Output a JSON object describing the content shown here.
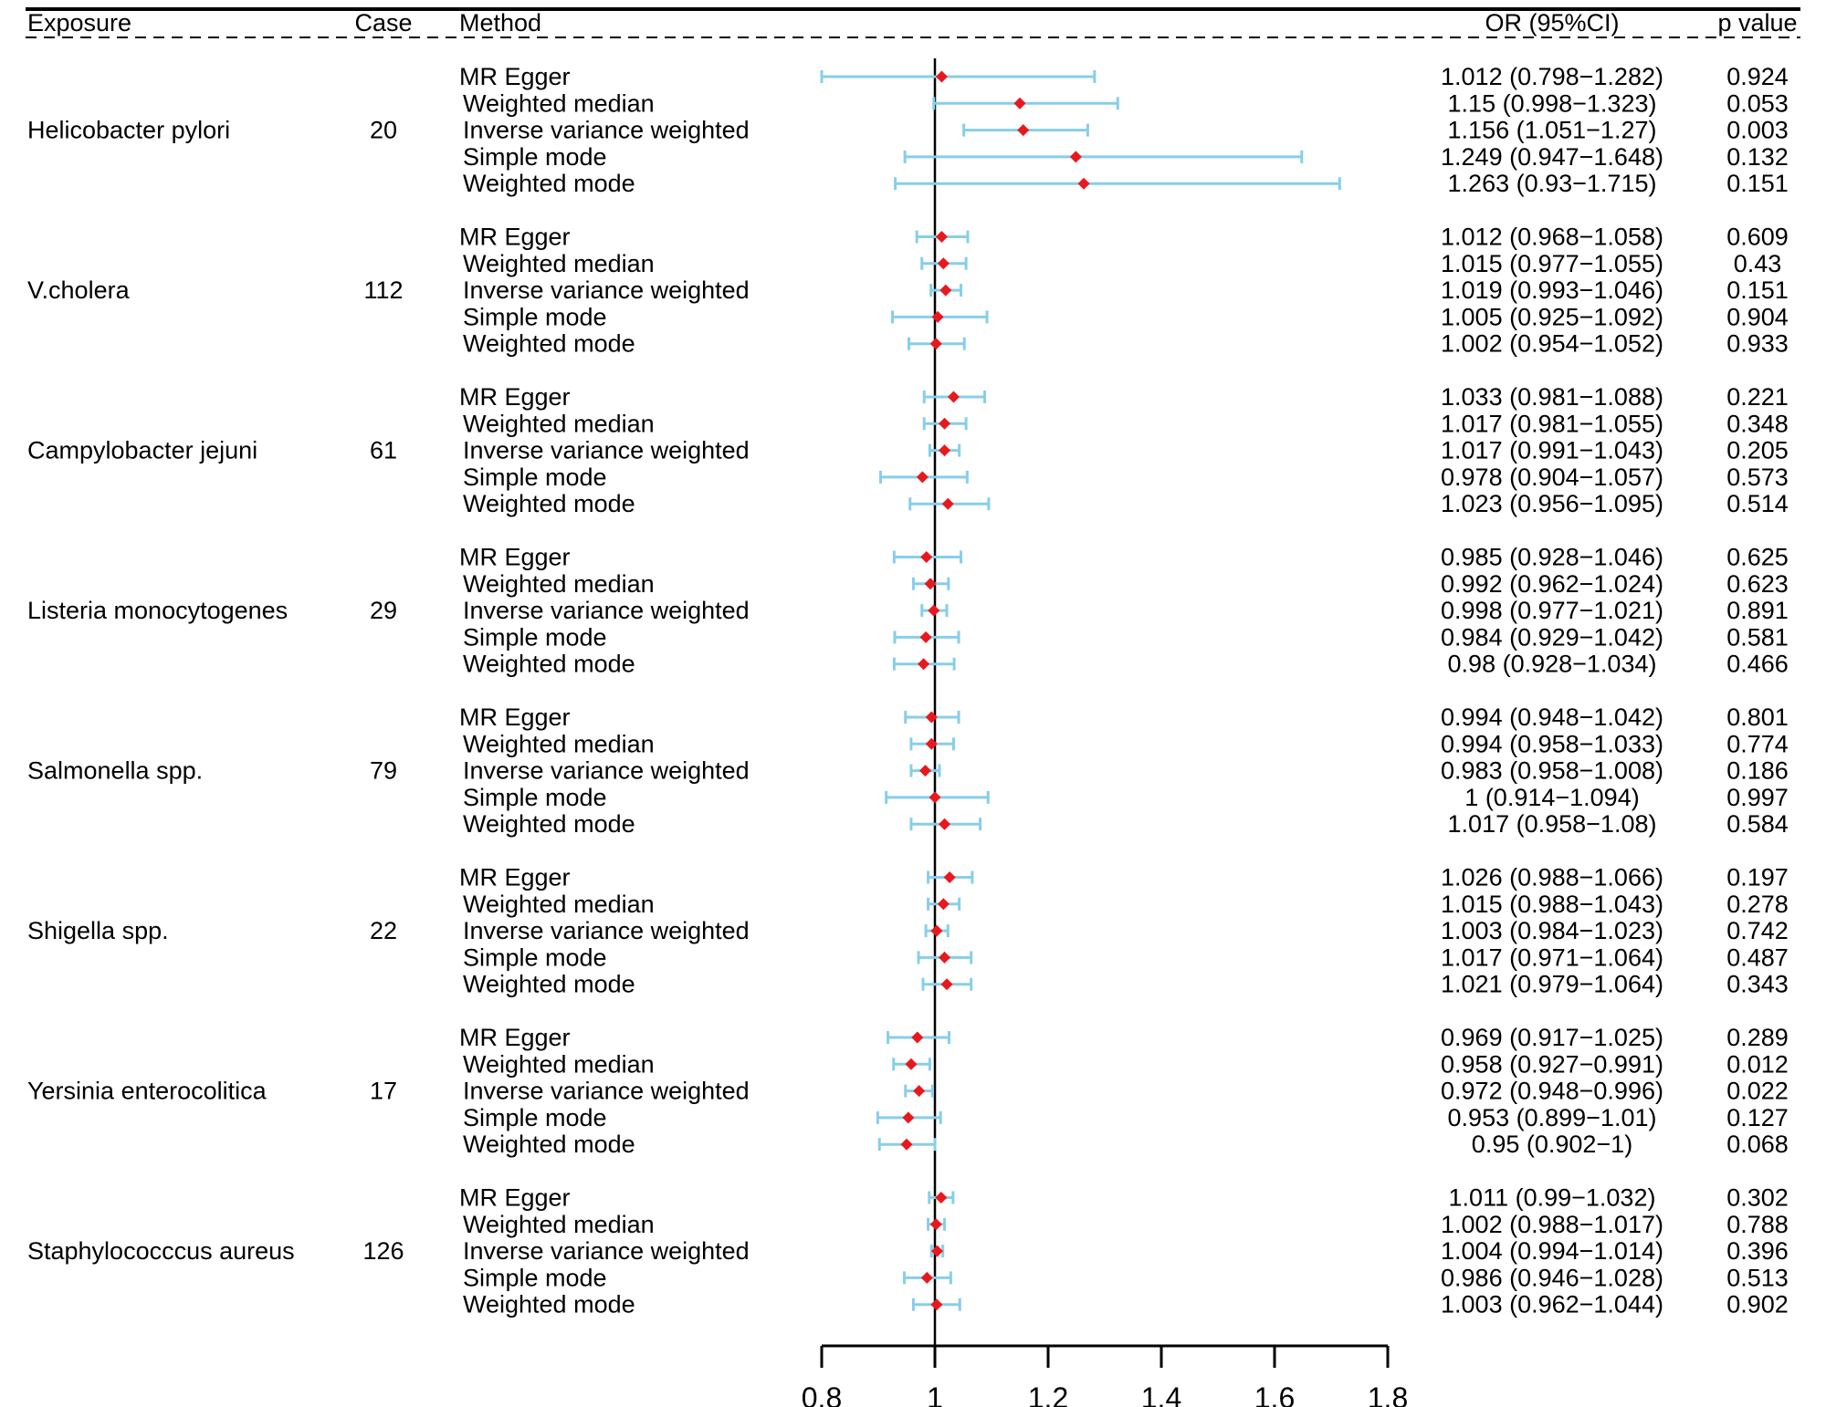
{
  "chart_data": {
    "type": "forest",
    "headers": {
      "exposure": "Exposure",
      "case": "Case",
      "method": "Method",
      "or_ci": "OR (95%CI)",
      "p": "p value"
    },
    "xlim": [
      0.8,
      1.8
    ],
    "xticks": [
      "0.8",
      "1",
      "1.2",
      "1.4",
      "1.6",
      "1.8"
    ],
    "xtick_values": [
      0.8,
      1.0,
      1.2,
      1.4,
      1.6,
      1.8
    ],
    "reference_line": 1,
    "colors": {
      "ci": "#87CEEB",
      "point": "#E8191D",
      "axis": "#000000"
    },
    "groups": [
      {
        "exposure": "Helicobacter pylori",
        "case": "20",
        "rows": [
          {
            "method": "MR Egger",
            "or": 1.012,
            "lo": 0.798,
            "hi": 1.282,
            "or_text": "1.012 (0.798−1.282)",
            "p": "0.924"
          },
          {
            "method": "Weighted median",
            "or": 1.15,
            "lo": 0.998,
            "hi": 1.323,
            "or_text": "1.15 (0.998−1.323)",
            "p": "0.053"
          },
          {
            "method": "Inverse variance weighted",
            "or": 1.156,
            "lo": 1.051,
            "hi": 1.27,
            "or_text": "1.156 (1.051−1.27)",
            "p": "0.003"
          },
          {
            "method": "Simple mode",
            "or": 1.249,
            "lo": 0.947,
            "hi": 1.648,
            "or_text": "1.249 (0.947−1.648)",
            "p": "0.132"
          },
          {
            "method": "Weighted mode",
            "or": 1.263,
            "lo": 0.93,
            "hi": 1.715,
            "or_text": "1.263 (0.93−1.715)",
            "p": "0.151"
          }
        ]
      },
      {
        "exposure": "V.cholera",
        "case": "112",
        "rows": [
          {
            "method": "MR Egger",
            "or": 1.012,
            "lo": 0.968,
            "hi": 1.058,
            "or_text": "1.012 (0.968−1.058)",
            "p": "0.609"
          },
          {
            "method": "Weighted median",
            "or": 1.015,
            "lo": 0.977,
            "hi": 1.055,
            "or_text": "1.015 (0.977−1.055)",
            "p": "0.43"
          },
          {
            "method": "Inverse variance weighted",
            "or": 1.019,
            "lo": 0.993,
            "hi": 1.046,
            "or_text": "1.019 (0.993−1.046)",
            "p": "0.151"
          },
          {
            "method": "Simple mode",
            "or": 1.005,
            "lo": 0.925,
            "hi": 1.092,
            "or_text": "1.005 (0.925−1.092)",
            "p": "0.904"
          },
          {
            "method": "Weighted mode",
            "or": 1.002,
            "lo": 0.954,
            "hi": 1.052,
            "or_text": "1.002 (0.954−1.052)",
            "p": "0.933"
          }
        ]
      },
      {
        "exposure": "Campylobacter jejuni",
        "case": "61",
        "rows": [
          {
            "method": "MR Egger",
            "or": 1.033,
            "lo": 0.981,
            "hi": 1.088,
            "or_text": "1.033 (0.981−1.088)",
            "p": "0.221"
          },
          {
            "method": "Weighted median",
            "or": 1.017,
            "lo": 0.981,
            "hi": 1.055,
            "or_text": "1.017 (0.981−1.055)",
            "p": "0.348"
          },
          {
            "method": "Inverse variance weighted",
            "or": 1.017,
            "lo": 0.991,
            "hi": 1.043,
            "or_text": "1.017 (0.991−1.043)",
            "p": "0.205"
          },
          {
            "method": "Simple mode",
            "or": 0.978,
            "lo": 0.904,
            "hi": 1.057,
            "or_text": "0.978 (0.904−1.057)",
            "p": "0.573"
          },
          {
            "method": "Weighted mode",
            "or": 1.023,
            "lo": 0.956,
            "hi": 1.095,
            "or_text": "1.023 (0.956−1.095)",
            "p": "0.514"
          }
        ]
      },
      {
        "exposure": "Listeria monocytogenes",
        "case": "29",
        "rows": [
          {
            "method": "MR Egger",
            "or": 0.985,
            "lo": 0.928,
            "hi": 1.046,
            "or_text": "0.985 (0.928−1.046)",
            "p": "0.625"
          },
          {
            "method": "Weighted median",
            "or": 0.992,
            "lo": 0.962,
            "hi": 1.024,
            "or_text": "0.992 (0.962−1.024)",
            "p": "0.623"
          },
          {
            "method": "Inverse variance weighted",
            "or": 0.998,
            "lo": 0.977,
            "hi": 1.021,
            "or_text": "0.998 (0.977−1.021)",
            "p": "0.891"
          },
          {
            "method": "Simple mode",
            "or": 0.984,
            "lo": 0.929,
            "hi": 1.042,
            "or_text": "0.984 (0.929−1.042)",
            "p": "0.581"
          },
          {
            "method": "Weighted mode",
            "or": 0.98,
            "lo": 0.928,
            "hi": 1.034,
            "or_text": "0.98 (0.928−1.034)",
            "p": "0.466"
          }
        ]
      },
      {
        "exposure": "Salmonella spp.",
        "case": "79",
        "rows": [
          {
            "method": "MR Egger",
            "or": 0.994,
            "lo": 0.948,
            "hi": 1.042,
            "or_text": "0.994 (0.948−1.042)",
            "p": "0.801"
          },
          {
            "method": "Weighted median",
            "or": 0.994,
            "lo": 0.958,
            "hi": 1.033,
            "or_text": "0.994 (0.958−1.033)",
            "p": "0.774"
          },
          {
            "method": "Inverse variance weighted",
            "or": 0.983,
            "lo": 0.958,
            "hi": 1.008,
            "or_text": "0.983 (0.958−1.008)",
            "p": "0.186"
          },
          {
            "method": "Simple mode",
            "or": 1.0,
            "lo": 0.914,
            "hi": 1.094,
            "or_text": "1 (0.914−1.094)",
            "p": "0.997"
          },
          {
            "method": "Weighted mode",
            "or": 1.017,
            "lo": 0.958,
            "hi": 1.08,
            "or_text": "1.017 (0.958−1.08)",
            "p": "0.584"
          }
        ]
      },
      {
        "exposure": "Shigella spp.",
        "case": "22",
        "rows": [
          {
            "method": "MR Egger",
            "or": 1.026,
            "lo": 0.988,
            "hi": 1.066,
            "or_text": "1.026 (0.988−1.066)",
            "p": "0.197"
          },
          {
            "method": "Weighted median",
            "or": 1.015,
            "lo": 0.988,
            "hi": 1.043,
            "or_text": "1.015 (0.988−1.043)",
            "p": "0.278"
          },
          {
            "method": "Inverse variance weighted",
            "or": 1.003,
            "lo": 0.984,
            "hi": 1.023,
            "or_text": "1.003 (0.984−1.023)",
            "p": "0.742"
          },
          {
            "method": "Simple mode",
            "or": 1.017,
            "lo": 0.971,
            "hi": 1.064,
            "or_text": "1.017 (0.971−1.064)",
            "p": "0.487"
          },
          {
            "method": "Weighted mode",
            "or": 1.021,
            "lo": 0.979,
            "hi": 1.064,
            "or_text": "1.021 (0.979−1.064)",
            "p": "0.343"
          }
        ]
      },
      {
        "exposure": "Yersinia enterocolitica",
        "case": "17",
        "rows": [
          {
            "method": "MR Egger",
            "or": 0.969,
            "lo": 0.917,
            "hi": 1.025,
            "or_text": "0.969 (0.917−1.025)",
            "p": "0.289"
          },
          {
            "method": "Weighted median",
            "or": 0.958,
            "lo": 0.927,
            "hi": 0.991,
            "or_text": "0.958 (0.927−0.991)",
            "p": "0.012"
          },
          {
            "method": "Inverse variance weighted",
            "or": 0.972,
            "lo": 0.948,
            "hi": 0.996,
            "or_text": "0.972 (0.948−0.996)",
            "p": "0.022"
          },
          {
            "method": "Simple mode",
            "or": 0.953,
            "lo": 0.899,
            "hi": 1.01,
            "or_text": "0.953 (0.899−1.01)",
            "p": "0.127"
          },
          {
            "method": "Weighted mode",
            "or": 0.95,
            "lo": 0.902,
            "hi": 1.0,
            "or_text": "0.95 (0.902−1)",
            "p": "0.068"
          }
        ]
      },
      {
        "exposure": "Staphylococccus aureus",
        "case": "126",
        "rows": [
          {
            "method": "MR Egger",
            "or": 1.011,
            "lo": 0.99,
            "hi": 1.032,
            "or_text": "1.011 (0.99−1.032)",
            "p": "0.302"
          },
          {
            "method": "Weighted median",
            "or": 1.002,
            "lo": 0.988,
            "hi": 1.017,
            "or_text": "1.002 (0.988−1.017)",
            "p": "0.788"
          },
          {
            "method": "Inverse variance weighted",
            "or": 1.004,
            "lo": 0.994,
            "hi": 1.014,
            "or_text": "1.004 (0.994−1.014)",
            "p": "0.396"
          },
          {
            "method": "Simple mode",
            "or": 0.986,
            "lo": 0.946,
            "hi": 1.028,
            "or_text": "0.986 (0.946−1.028)",
            "p": "0.513"
          },
          {
            "method": "Weighted mode",
            "or": 1.003,
            "lo": 0.962,
            "hi": 1.044,
            "or_text": "1.003 (0.962−1.044)",
            "p": "0.902"
          }
        ]
      }
    ]
  }
}
